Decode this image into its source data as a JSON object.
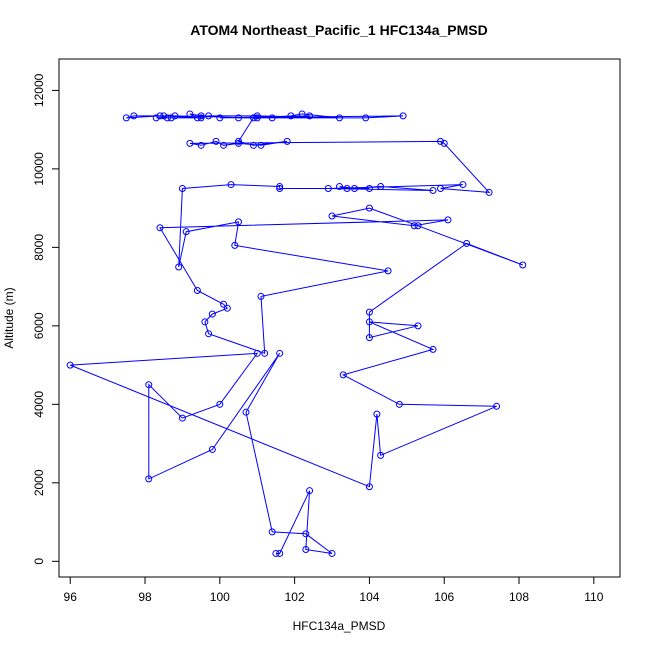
{
  "chart_data": {
    "type": "line",
    "title": "ATOM4 Northeast_Pacific_1 HFC134a_PMSD",
    "xlabel": "HFC134a_PMSD",
    "ylabel": "Altitude (m)",
    "xlim": [
      95.7,
      110.7
    ],
    "ylim": [
      -400,
      12800
    ],
    "xticks": [
      96,
      98,
      100,
      102,
      104,
      106,
      108,
      110
    ],
    "yticks": [
      0,
      2000,
      4000,
      6000,
      8000,
      10000,
      12000
    ],
    "grid": false,
    "legend": "none",
    "color": "#0000ff",
    "marker": "open-circle",
    "series": [
      {
        "x": [
          101.5,
          101.6,
          102.4,
          102.3,
          103.0,
          102.3,
          101.4,
          100.7,
          101.6,
          99.8,
          98.1,
          98.1,
          99.0,
          100.0,
          101.0,
          96.0,
          104.0,
          104.2,
          104.3,
          107.4,
          104.8,
          103.3,
          105.7,
          104.0,
          105.3,
          104.0,
          104.0,
          106.6,
          108.1,
          105.3,
          104.0,
          103.0,
          105.2,
          106.1,
          98.4,
          99.4,
          100.1,
          100.2,
          99.8,
          99.6,
          99.7,
          101.2,
          101.1,
          104.5,
          100.4,
          100.5,
          99.1,
          98.9,
          99.0,
          100.3,
          101.6,
          101.6,
          104.0,
          103.6,
          103.2,
          103.4,
          104.3,
          105.7,
          102.9,
          106.5,
          105.9,
          107.2,
          106.0,
          105.9,
          99.2,
          99.5,
          99.9,
          100.1,
          100.5,
          101.1,
          101.8,
          100.9,
          100.5,
          100.9,
          98.8,
          97.7,
          97.5,
          98.4,
          98.6,
          98.5,
          99.5,
          99.7,
          101.0,
          103.2,
          102.2,
          101.9,
          101.0,
          103.9,
          104.9,
          100.0,
          102.4,
          101.4,
          100.5,
          99.5,
          99.2,
          99.4,
          98.7,
          98.3
        ],
        "y": [
          200,
          200,
          1800,
          300,
          200,
          700,
          750,
          3800,
          5300,
          2850,
          2100,
          4500,
          3650,
          4000,
          5300,
          5000,
          1900,
          3750,
          2700,
          3950,
          4000,
          4750,
          5400,
          6100,
          6000,
          5700,
          6350,
          8100,
          7550,
          8550,
          9000,
          8800,
          8550,
          8700,
          8500,
          6900,
          6550,
          6450,
          6300,
          6100,
          5800,
          5300,
          6750,
          7400,
          8050,
          8650,
          8400,
          7500,
          9500,
          9600,
          9550,
          9500,
          9500,
          9500,
          9550,
          9500,
          9550,
          9450,
          9500,
          9600,
          9500,
          9400,
          10650,
          10700,
          10650,
          10600,
          10700,
          10600,
          10650,
          10600,
          10700,
          10600,
          10700,
          11300,
          11350,
          11350,
          11300,
          11350,
          11300,
          11350,
          11300,
          11350,
          11350,
          11300,
          11400,
          11350,
          11300,
          11300,
          11350,
          11300,
          11350,
          11300,
          11300,
          11350,
          11400,
          11300,
          11300,
          11300
        ]
      }
    ]
  }
}
